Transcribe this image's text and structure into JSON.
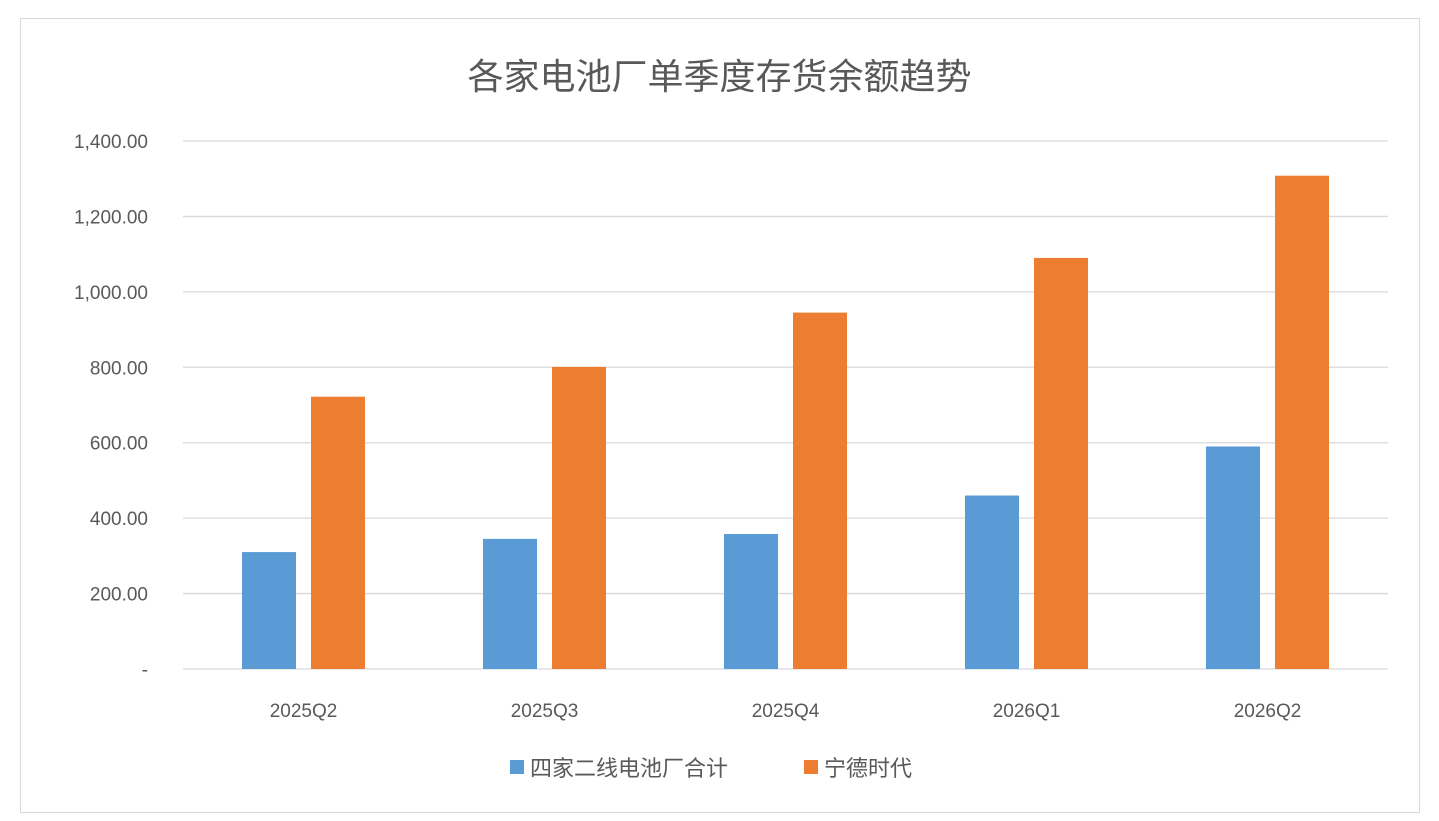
{
  "chart_data": {
    "type": "bar",
    "title": "各家电池厂单季度存货余额趋势",
    "categories": [
      "2025Q2",
      "2025Q3",
      "2025Q4",
      "2026Q1",
      "2026Q2"
    ],
    "series": [
      {
        "name": "四家二线电池厂合计",
        "color": "#5b9bd5",
        "values": [
          310,
          345,
          358,
          460,
          590
        ]
      },
      {
        "name": "宁德时代",
        "color": "#ed7d31",
        "values": [
          722,
          801,
          945,
          1090,
          1308
        ]
      }
    ],
    "ylim": [
      0,
      1400
    ],
    "yticks": [
      0,
      200,
      400,
      600,
      800,
      1000,
      1200,
      1400
    ],
    "ytick_labels": [
      "-",
      "200.00",
      "400.00",
      "600.00",
      "800.00",
      "1,000.00",
      "1,200.00",
      "1,400.00"
    ],
    "grid": true,
    "legend_position": "bottom"
  }
}
